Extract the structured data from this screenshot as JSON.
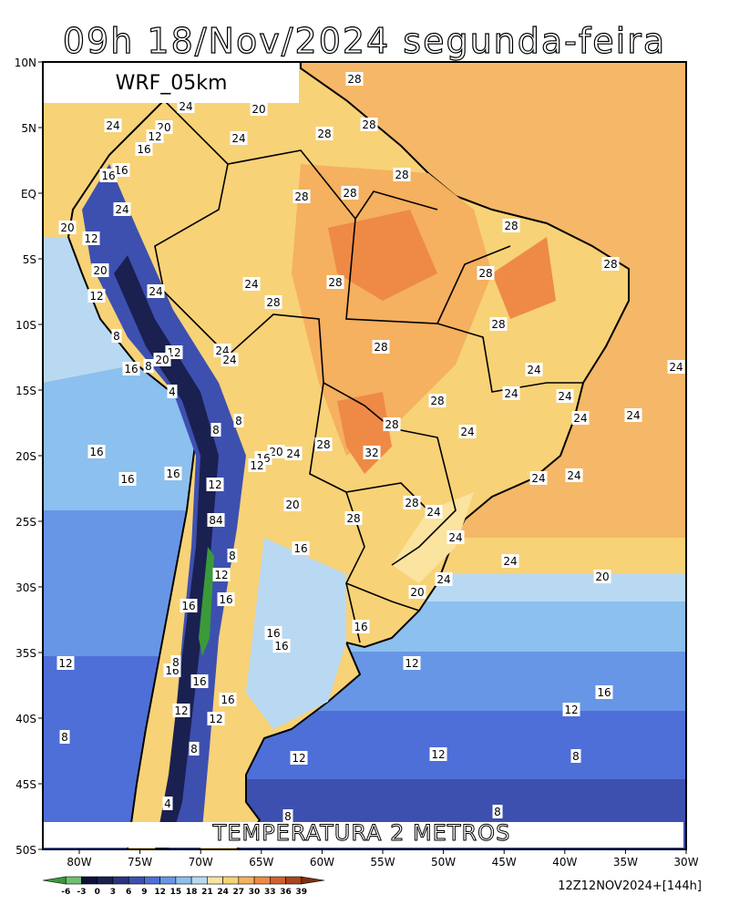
{
  "title": "09h 18/Nov/2024 segunda-feira",
  "model": "WRF_05km",
  "field": "TEMPERATURA 2 METROS",
  "run": "12Z12NOV2024+[144h]",
  "lat_labels": [
    "10N",
    "5N",
    "EQ",
    "5S",
    "10S",
    "15S",
    "20S",
    "25S",
    "30S",
    "35S",
    "40S",
    "45S",
    "50S"
  ],
  "lon_labels": [
    "80W",
    "75W",
    "70W",
    "65W",
    "60W",
    "55W",
    "50W",
    "45W",
    "40W",
    "35W",
    "30W"
  ],
  "colorbar": {
    "labels": [
      "-6",
      "-3",
      "0",
      "3",
      "6",
      "9",
      "12",
      "15",
      "18",
      "21",
      "24",
      "27",
      "30",
      "33",
      "36",
      "39"
    ],
    "colors": [
      "#3a9a3a",
      "#6fc26f",
      "#0e1238",
      "#1a2050",
      "#2a3580",
      "#3d50b0",
      "#4e6fd8",
      "#6796e6",
      "#8cc0ee",
      "#b9d9f2",
      "#fbe3a0",
      "#f7d277",
      "#f5b060",
      "#ee8a46",
      "#d2602e",
      "#a8461e",
      "#7a3010"
    ]
  },
  "contour_labels": [
    "28",
    "24",
    "20",
    "20",
    "12",
    "24",
    "28",
    "28",
    "24",
    "16",
    "16",
    "16",
    "28",
    "28",
    "28",
    "24",
    "20",
    "12",
    "28",
    "28",
    "20",
    "28",
    "28",
    "24",
    "24",
    "28",
    "12",
    "28",
    "8",
    "28",
    "24",
    "12",
    "20",
    "8",
    "24",
    "16",
    "24",
    "24",
    "4",
    "28",
    "24",
    "24",
    "24",
    "24",
    "28",
    "8",
    "8",
    "24",
    "16",
    "28",
    "32",
    "24",
    "20",
    "16",
    "12",
    "16",
    "16",
    "24",
    "24",
    "12",
    "20",
    "28",
    "24",
    "28",
    "84",
    "24",
    "16",
    "8",
    "24",
    "12",
    "20",
    "24",
    "20",
    "16",
    "16",
    "16",
    "16",
    "16",
    "12",
    "16",
    "12",
    "16",
    "8",
    "16",
    "16",
    "12",
    "12",
    "12",
    "8",
    "8",
    "12",
    "12",
    "8",
    "4",
    "8",
    "8"
  ]
}
